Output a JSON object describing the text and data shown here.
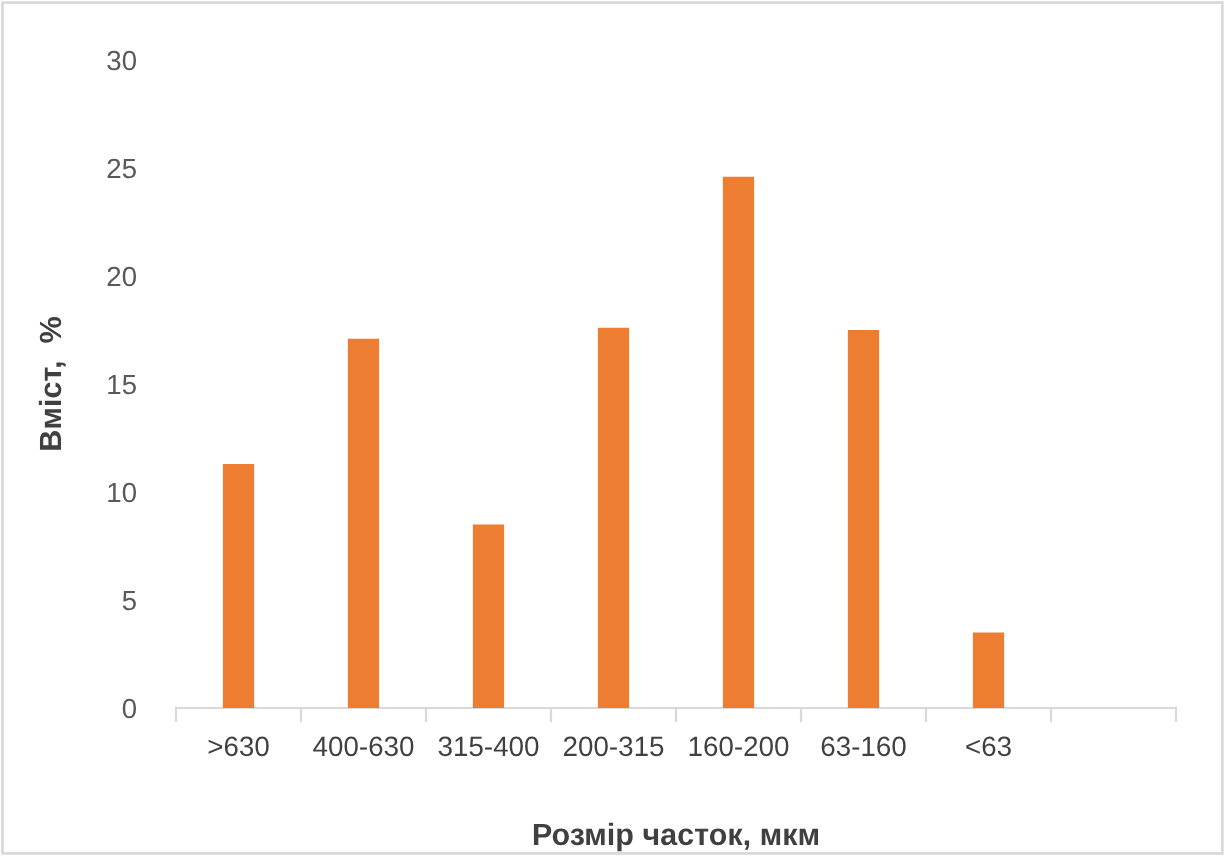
{
  "chart_data": {
    "type": "bar",
    "xlabel": "Розмір часток, мкм",
    "ylabel": "Вміст,  %",
    "categories": [
      ">630",
      "400-630",
      "315-400",
      "200-315",
      "160-200",
      "63-160",
      "<63",
      null
    ],
    "values": [
      11.3,
      17.1,
      8.5,
      17.6,
      24.6,
      17.5,
      3.5,
      null
    ],
    "color": "#ed7d31",
    "ylim": [
      0,
      30
    ],
    "yticks": [
      0,
      5,
      10,
      15,
      20,
      25,
      30
    ],
    "grid": false,
    "legend": false
  }
}
